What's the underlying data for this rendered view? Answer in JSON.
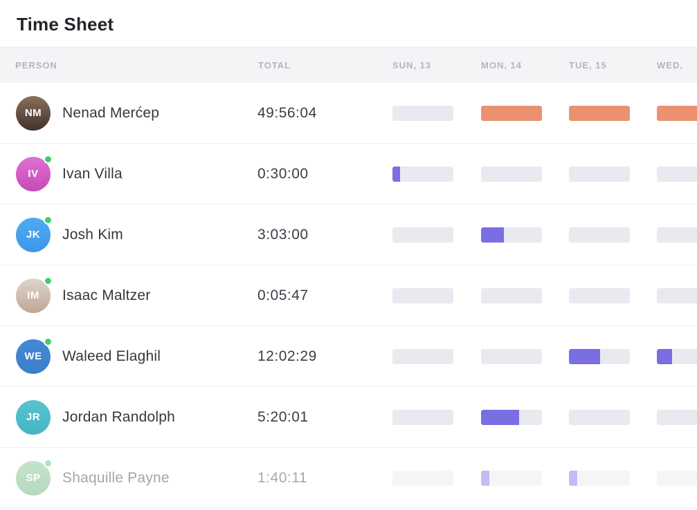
{
  "title": "Time Sheet",
  "table": {
    "columns": {
      "person": "PERSON",
      "total": "TOTAL",
      "days": [
        "SUN, 13",
        "MON, 14",
        "TUE, 15",
        "WED,"
      ]
    }
  },
  "colors": {
    "bar_filled_orange": "#EC9170",
    "bar_filled_purple": "#7A6EE3",
    "bar_empty": "#E9EAEF",
    "header_background": "#F4F4F6",
    "online_status_green": "#43CD66",
    "header_text": "#B2B5C0"
  },
  "rows": [
    {
      "name": "Nenad Merćep",
      "total": "49:56:04",
      "avatar": {
        "initials": "NM",
        "bg": "#8A6F5C",
        "bg2": "#41322B"
      },
      "online": false,
      "faded": false,
      "bars": [
        {
          "fill": 0,
          "color": "#EC9170"
        },
        {
          "fill": 1,
          "color": "#EC9170"
        },
        {
          "fill": 1,
          "color": "#EC9170"
        },
        {
          "fill": 1,
          "color": "#EC9170"
        }
      ]
    },
    {
      "name": "Ivan Villa",
      "total": "0:30:00",
      "avatar": {
        "initials": "IV",
        "bg": "#E070D2",
        "bg2": "#C44BB4"
      },
      "online": true,
      "faded": false,
      "bars": [
        {
          "fill": 0.12,
          "color": "#7A6EE3"
        },
        {
          "fill": 0,
          "color": "#7A6EE3"
        },
        {
          "fill": 0,
          "color": "#7A6EE3"
        },
        {
          "fill": 0,
          "color": "#7A6EE3"
        }
      ]
    },
    {
      "name": "Josh Kim",
      "total": "3:03:00",
      "avatar": {
        "initials": "JK",
        "bg": "#4FAAF3",
        "bg2": "#3D97E8"
      },
      "online": true,
      "faded": false,
      "bars": [
        {
          "fill": 0,
          "color": "#7A6EE3"
        },
        {
          "fill": 0.38,
          "color": "#7A6EE3"
        },
        {
          "fill": 0,
          "color": "#7A6EE3"
        },
        {
          "fill": 0,
          "color": "#7A6EE3"
        }
      ]
    },
    {
      "name": "Isaac Maltzer",
      "total": "0:05:47",
      "avatar": {
        "initials": "IM",
        "bg": "#DDD5CC",
        "bg2": "#BEA794"
      },
      "online": true,
      "faded": false,
      "bars": [
        {
          "fill": 0,
          "color": "#7A6EE3"
        },
        {
          "fill": 0,
          "color": "#7A6EE3"
        },
        {
          "fill": 0,
          "color": "#7A6EE3"
        },
        {
          "fill": 0,
          "color": "#7A6EE3"
        }
      ]
    },
    {
      "name": "Waleed Elaghil",
      "total": "12:02:29",
      "avatar": {
        "initials": "WE",
        "bg": "#4489D6",
        "bg2": "#3C7FCB"
      },
      "online": true,
      "faded": false,
      "bars": [
        {
          "fill": 0,
          "color": "#7A6EE3"
        },
        {
          "fill": 0,
          "color": "#7A6EE3"
        },
        {
          "fill": 0.51,
          "color": "#7A6EE3"
        },
        {
          "fill": 0.25,
          "color": "#7A6EE3"
        }
      ]
    },
    {
      "name": "Jordan Randolph",
      "total": "5:20:01",
      "avatar": {
        "initials": "JR",
        "bg": "#58C3CF",
        "bg2": "#46B5C2"
      },
      "online": false,
      "faded": false,
      "bars": [
        {
          "fill": 0,
          "color": "#7A6EE3"
        },
        {
          "fill": 0.63,
          "color": "#7A6EE3"
        },
        {
          "fill": 0,
          "color": "#7A6EE3"
        },
        {
          "fill": 0,
          "color": "#7A6EE3"
        }
      ]
    },
    {
      "name": "Shaquille Payne",
      "total": "1:40:11",
      "avatar": {
        "initials": "SP",
        "bg": "#7FC18F",
        "bg2": "#5FAF74"
      },
      "online": true,
      "faded": true,
      "bars": [
        {
          "fill": 0,
          "color": "#7A6EE3"
        },
        {
          "fill": 0.14,
          "color": "#7A6EE3"
        },
        {
          "fill": 0.14,
          "color": "#7A6EE3"
        },
        {
          "fill": 0,
          "color": "#7A6EE3"
        }
      ]
    }
  ]
}
